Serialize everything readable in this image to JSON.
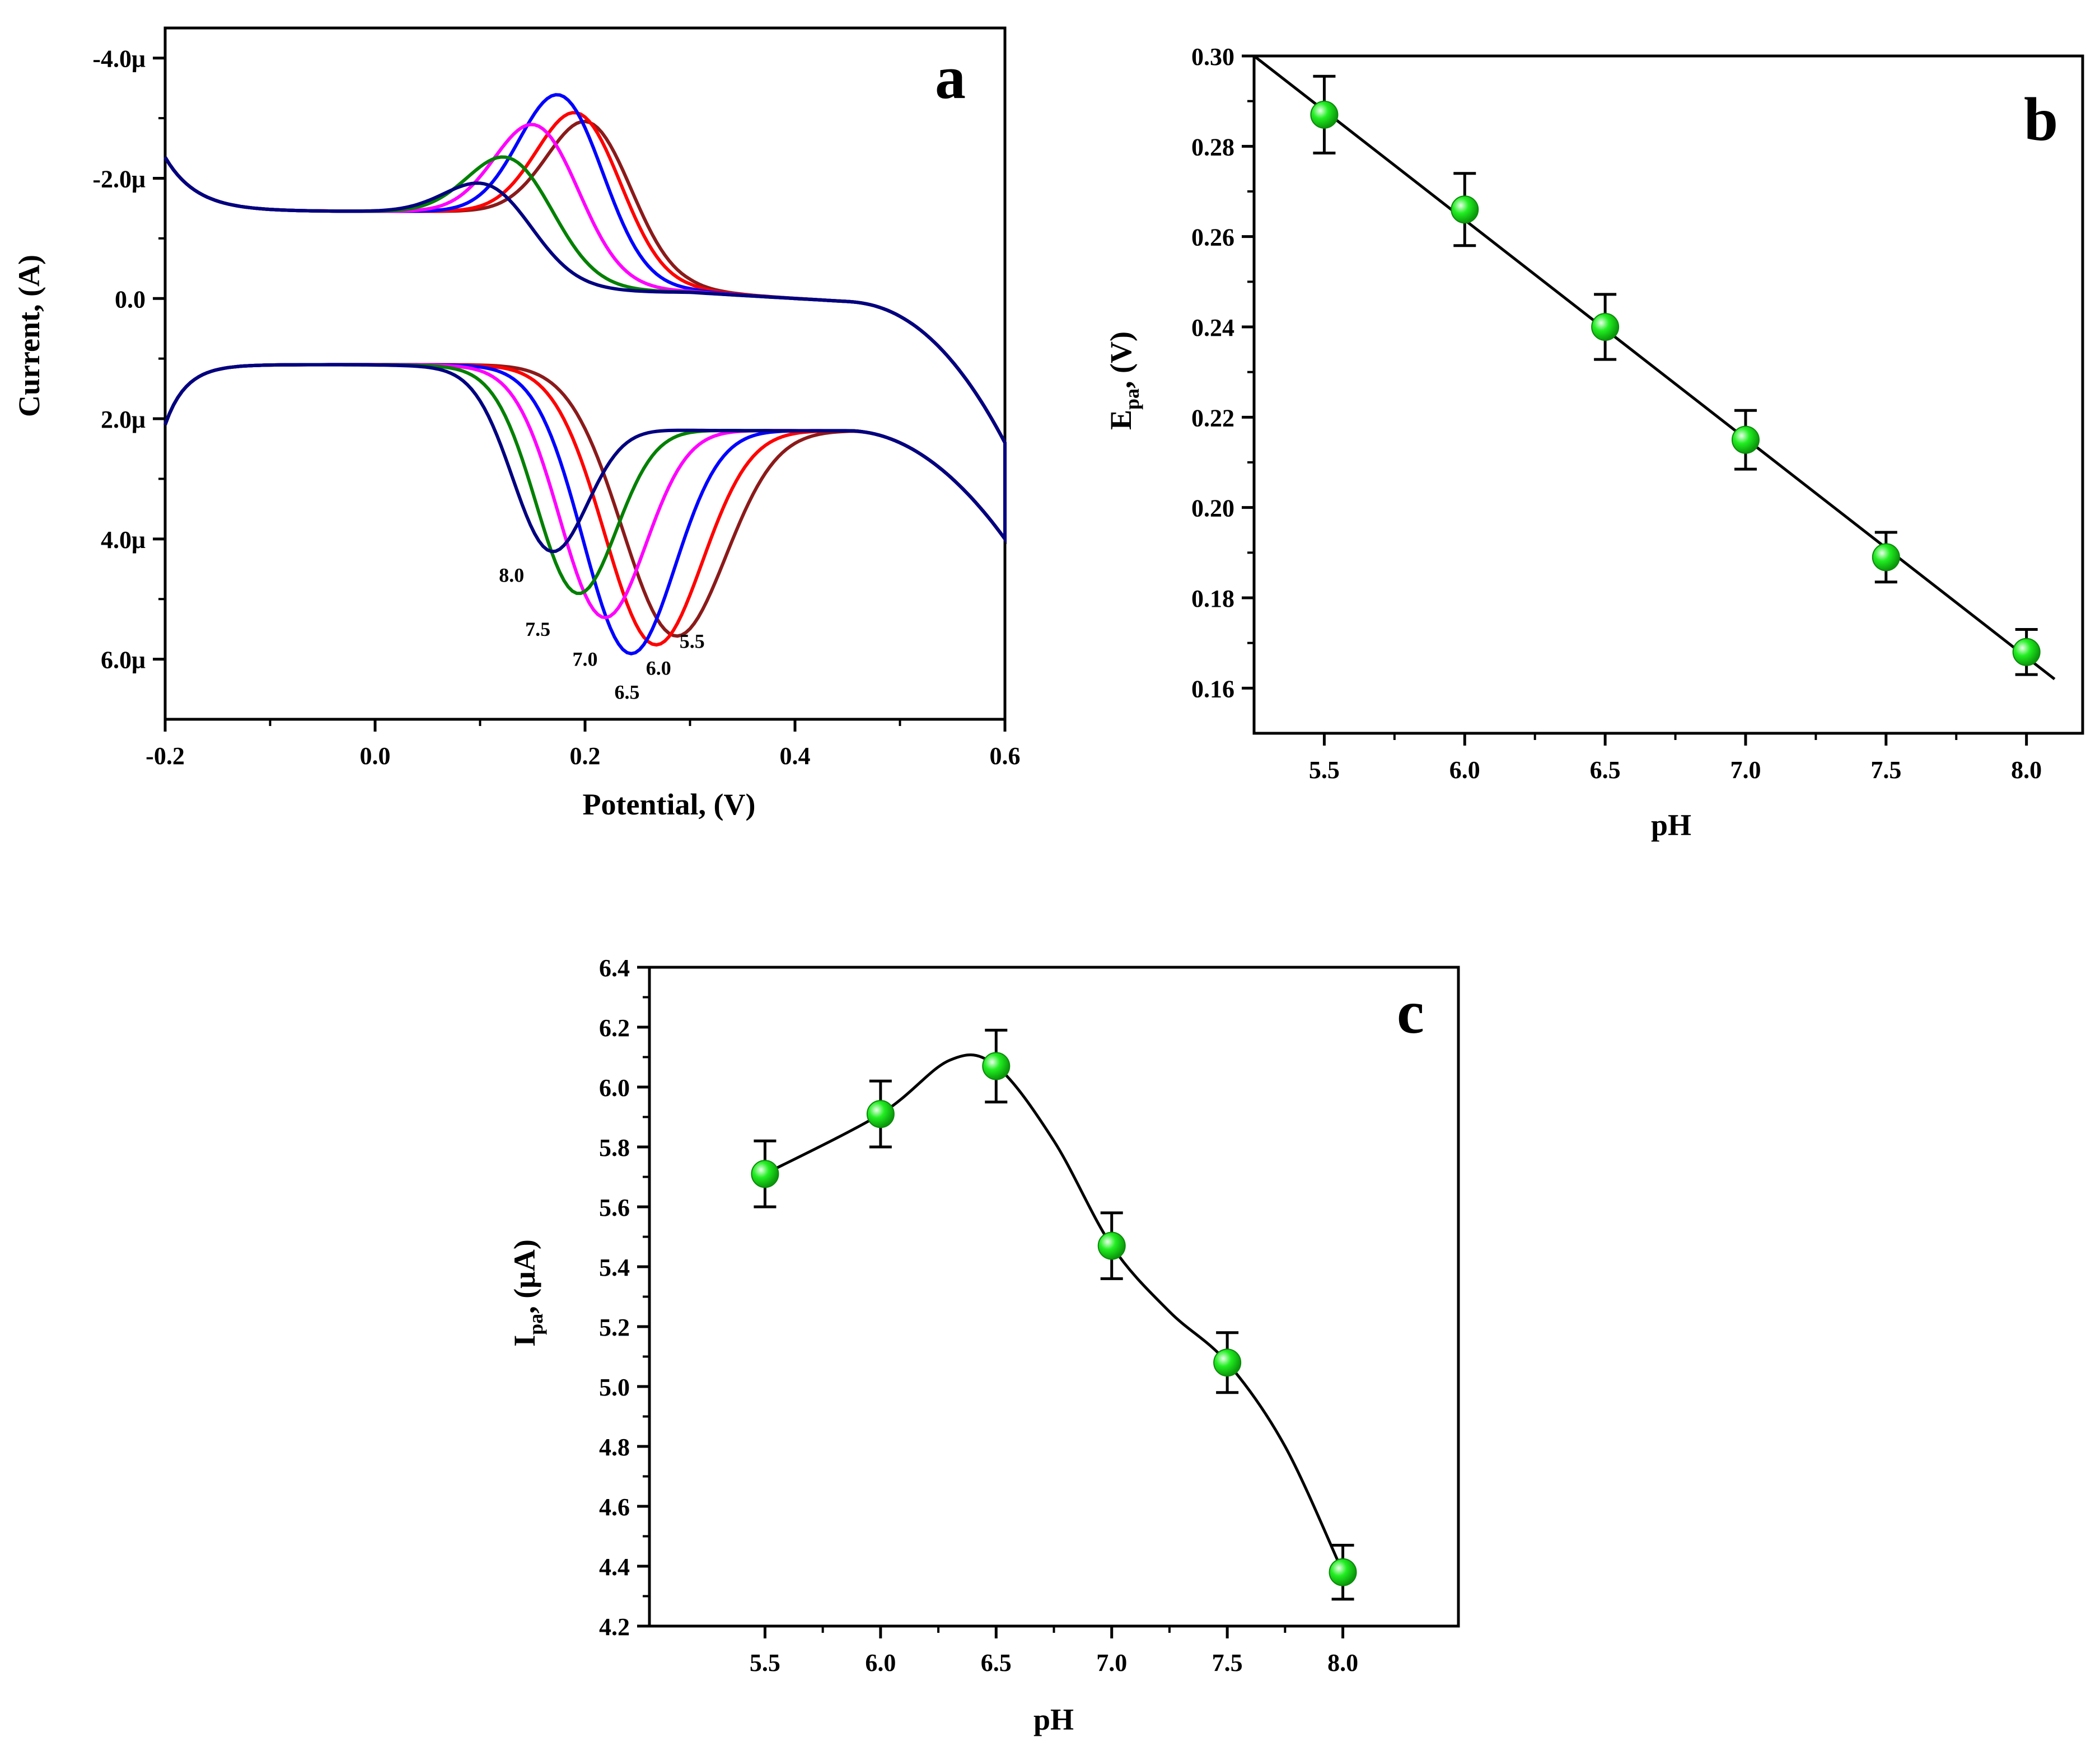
{
  "chart_data": [
    {
      "panel_label": "a",
      "type": "line",
      "xlabel": "Potential, (V)",
      "ylabel": "Current, (A)",
      "xlim": [
        -0.2,
        0.6
      ],
      "ylim": [
        7.0,
        -4.5
      ],
      "xticks": [
        -0.2,
        0.0,
        0.2,
        0.4,
        0.6
      ],
      "xtick_labels": [
        "-0.2",
        "0.0",
        "0.2",
        "0.4",
        "0.6"
      ],
      "yticks": [
        -4,
        -2,
        0,
        2,
        4,
        6
      ],
      "ytick_labels": [
        "-4.0μ",
        "-2.0μ",
        "0.0",
        "2.0μ",
        "4.0μ",
        "6.0μ"
      ],
      "series": [
        {
          "name": "5.5",
          "color": "#8b1a1a",
          "ox_peak_v": 0.205,
          "ox_peak_i": -2.8,
          "red_peak_v": 0.282,
          "red_peak_i": 5.75,
          "label_v": 0.302,
          "label_i": 5.7
        },
        {
          "name": "6.0",
          "color": "#ff0000",
          "ox_peak_v": 0.195,
          "ox_peak_i": -2.95,
          "red_peak_v": 0.263,
          "red_peak_i": 5.9,
          "label_v": 0.27,
          "label_i": 6.15
        },
        {
          "name": "6.5",
          "color": "#0000ff",
          "ox_peak_v": 0.178,
          "ox_peak_i": -3.25,
          "red_peak_v": 0.24,
          "red_peak_i": 6.05,
          "label_v": 0.24,
          "label_i": 6.55
        },
        {
          "name": "7.0",
          "color": "#ff00ff",
          "ox_peak_v": 0.155,
          "ox_peak_i": -2.75,
          "red_peak_v": 0.215,
          "red_peak_i": 5.45,
          "label_v": 0.2,
          "label_i": 6.0
        },
        {
          "name": "7.5",
          "color": "#008000",
          "ox_peak_v": 0.13,
          "ox_peak_i": -2.2,
          "red_peak_v": 0.19,
          "red_peak_i": 5.05,
          "label_v": 0.155,
          "label_i": 5.5
        },
        {
          "name": "8.0",
          "color": "#000080",
          "ox_peak_v": 0.11,
          "ox_peak_i": -1.75,
          "red_peak_v": 0.165,
          "red_peak_i": 4.35,
          "label_v": 0.13,
          "label_i": 4.6
        }
      ]
    },
    {
      "panel_label": "b",
      "type": "scatter",
      "xlabel": "pH",
      "ylabel_main": "E",
      "ylabel_sub": "pa",
      "ylabel_tail": ", (V)",
      "xlim": [
        5.25,
        8.2
      ],
      "ylim": [
        0.15,
        0.3
      ],
      "xticks": [
        5.5,
        6.0,
        6.5,
        7.0,
        7.5,
        8.0
      ],
      "xtick_labels": [
        "5.5",
        "6.0",
        "6.5",
        "7.0",
        "7.5",
        "8.0"
      ],
      "yticks": [
        0.16,
        0.18,
        0.2,
        0.22,
        0.24,
        0.26,
        0.28,
        0.3
      ],
      "ytick_labels": [
        "0.16",
        "0.18",
        "0.20",
        "0.22",
        "0.24",
        "0.26",
        "0.28",
        "0.30"
      ],
      "x": [
        5.5,
        6.0,
        6.5,
        7.0,
        7.5,
        8.0
      ],
      "y": [
        0.287,
        0.266,
        0.24,
        0.215,
        0.189,
        0.168
      ],
      "err": [
        0.0085,
        0.008,
        0.0072,
        0.0065,
        0.0055,
        0.005
      ],
      "fit": {
        "x0": 5.25,
        "y0": 0.3,
        "x1": 8.1,
        "y1": 0.162
      },
      "marker_color": "#22ee22"
    },
    {
      "panel_label": "c",
      "type": "scatter",
      "xlabel": "pH",
      "ylabel_main": "I",
      "ylabel_sub": "pa",
      "ylabel_tail": ", (μA)",
      "xlim": [
        5.0,
        8.5
      ],
      "ylim": [
        4.2,
        6.4
      ],
      "xticks": [
        5.5,
        6.0,
        6.5,
        7.0,
        7.5,
        8.0
      ],
      "xtick_labels": [
        "5.5",
        "6.0",
        "6.5",
        "7.0",
        "7.5",
        "8.0"
      ],
      "yticks": [
        4.2,
        4.4,
        4.6,
        4.8,
        5.0,
        5.2,
        5.4,
        5.6,
        5.8,
        6.0,
        6.2,
        6.4
      ],
      "ytick_labels": [
        "4.2",
        "4.4",
        "4.6",
        "4.8",
        "5.0",
        "5.2",
        "5.4",
        "5.6",
        "5.8",
        "6.0",
        "6.2",
        "6.4"
      ],
      "x": [
        5.5,
        6.0,
        6.5,
        7.0,
        7.5,
        8.0
      ],
      "y": [
        5.71,
        5.91,
        6.07,
        5.47,
        5.08,
        4.38
      ],
      "err": [
        0.11,
        0.11,
        0.12,
        0.11,
        0.1,
        0.09
      ],
      "curve": [
        [
          5.5,
          5.71
        ],
        [
          6.0,
          5.91
        ],
        [
          6.3,
          6.09
        ],
        [
          6.5,
          6.07
        ],
        [
          6.75,
          5.82
        ],
        [
          7.0,
          5.47
        ],
        [
          7.25,
          5.25
        ],
        [
          7.5,
          5.08
        ],
        [
          7.75,
          4.8
        ],
        [
          8.0,
          4.38
        ]
      ],
      "marker_color": "#22ee22"
    }
  ]
}
